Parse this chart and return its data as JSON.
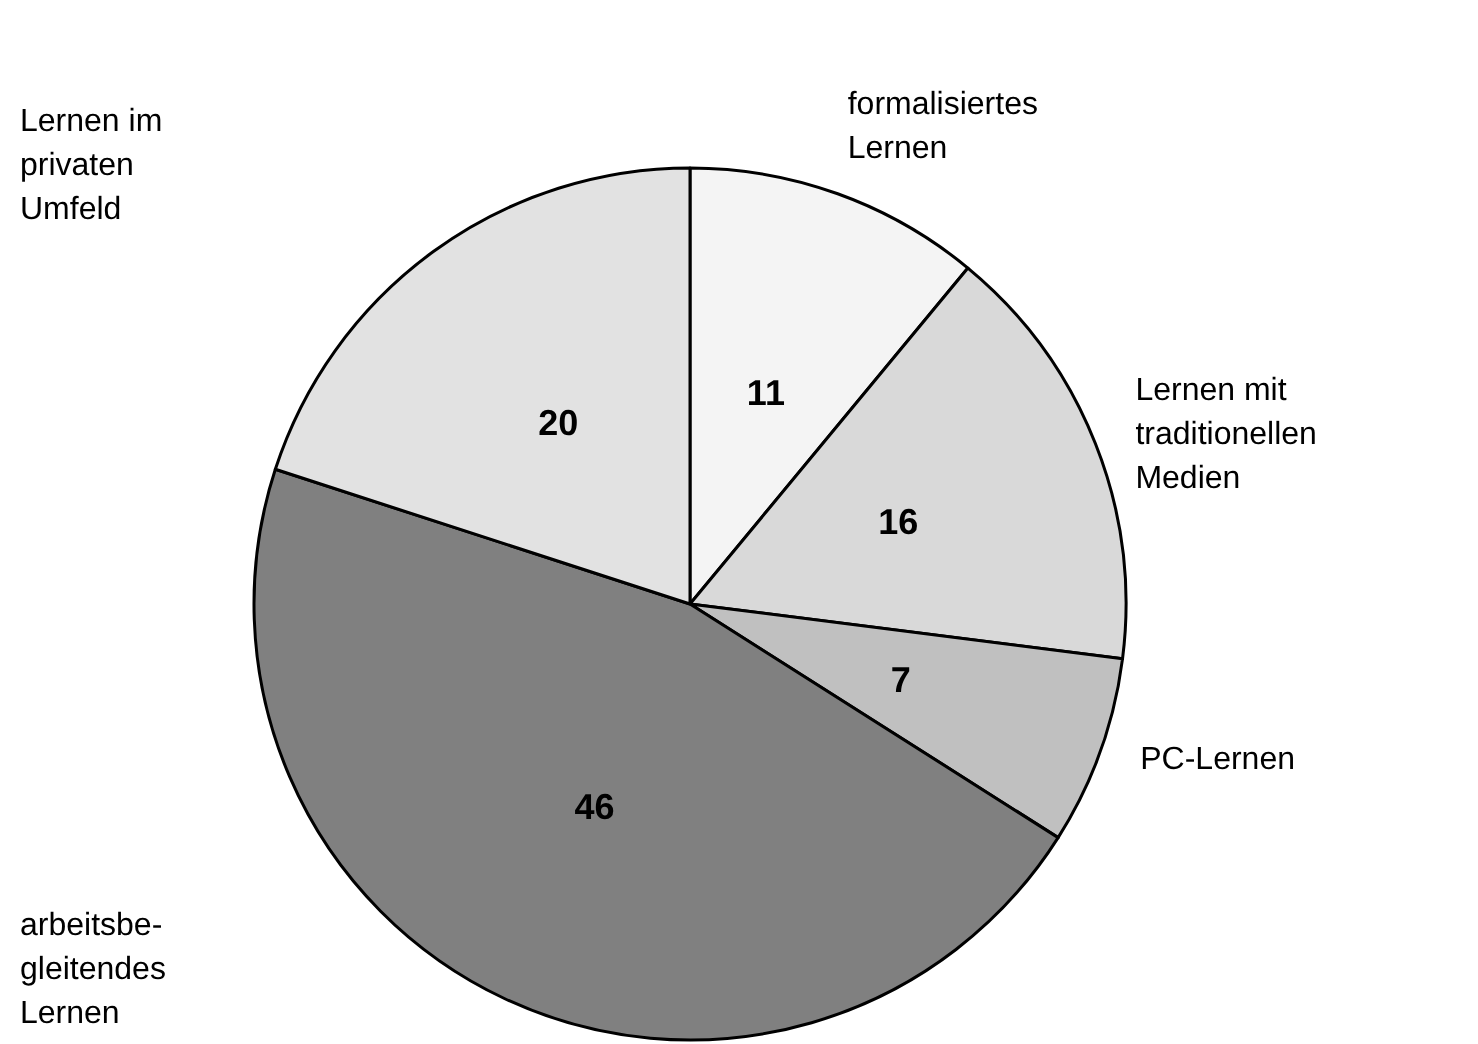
{
  "chart_data": {
    "type": "pie",
    "categories": [
      "formalisiertes\nLernen",
      "Lernen mit\ntraditionellen\nMedien",
      "PC-Lernen",
      "arbeitsbe-\ngleitendes\nLernen",
      "Lernen im\nprivaten\nUmfeld"
    ],
    "values": [
      11,
      16,
      7,
      46,
      20
    ],
    "colors": [
      "#f4f4f4",
      "#d9d9d9",
      "#c0c0c0",
      "#808080",
      "#e2e2e2"
    ],
    "data_labels": true
  }
}
